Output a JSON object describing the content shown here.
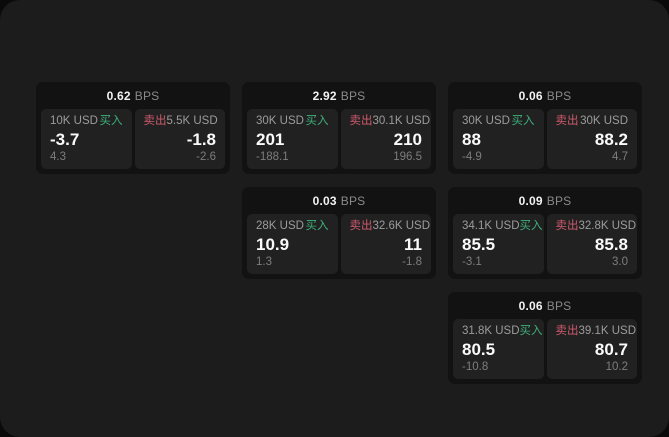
{
  "terms": {
    "buy": "买入",
    "sell": "卖出",
    "bps_unit": "BPS"
  },
  "colors": {
    "page_bg": "#1c1c1c",
    "outer_bg": "#0a0a0a",
    "card_bg": "#121212",
    "panel_bg": "#212121",
    "buy_green": "#3faf7c",
    "sell_red": "#cf5a6d"
  },
  "cards": [
    {
      "bps": "0.62",
      "buy": {
        "amount": "10K USD",
        "value": "-3.7",
        "delta": "4.3"
      },
      "sell": {
        "amount": "5.5K USD",
        "value": "-1.8",
        "delta": "-2.6"
      }
    },
    {
      "bps": "2.92",
      "buy": {
        "amount": "30K USD",
        "value": "201",
        "delta": "-188.1"
      },
      "sell": {
        "amount": "30.1K USD",
        "value": "210",
        "delta": "196.5"
      }
    },
    {
      "bps": "0.06",
      "buy": {
        "amount": "30K USD",
        "value": "88",
        "delta": "-4.9"
      },
      "sell": {
        "amount": "30K USD",
        "value": "88.2",
        "delta": "4.7"
      }
    },
    {
      "bps": "0.03",
      "buy": {
        "amount": "28K USD",
        "value": "10.9",
        "delta": "1.3"
      },
      "sell": {
        "amount": "32.6K USD",
        "value": "11",
        "delta": "-1.8"
      }
    },
    {
      "bps": "0.09",
      "buy": {
        "amount": "34.1K USD",
        "value": "85.5",
        "delta": "-3.1"
      },
      "sell": {
        "amount": "32.8K USD",
        "value": "85.8",
        "delta": "3.0"
      }
    },
    {
      "bps": "0.06",
      "buy": {
        "amount": "31.8K USD",
        "value": "80.5",
        "delta": "-10.8"
      },
      "sell": {
        "amount": "39.1K USD",
        "value": "80.7",
        "delta": "10.2"
      }
    }
  ]
}
